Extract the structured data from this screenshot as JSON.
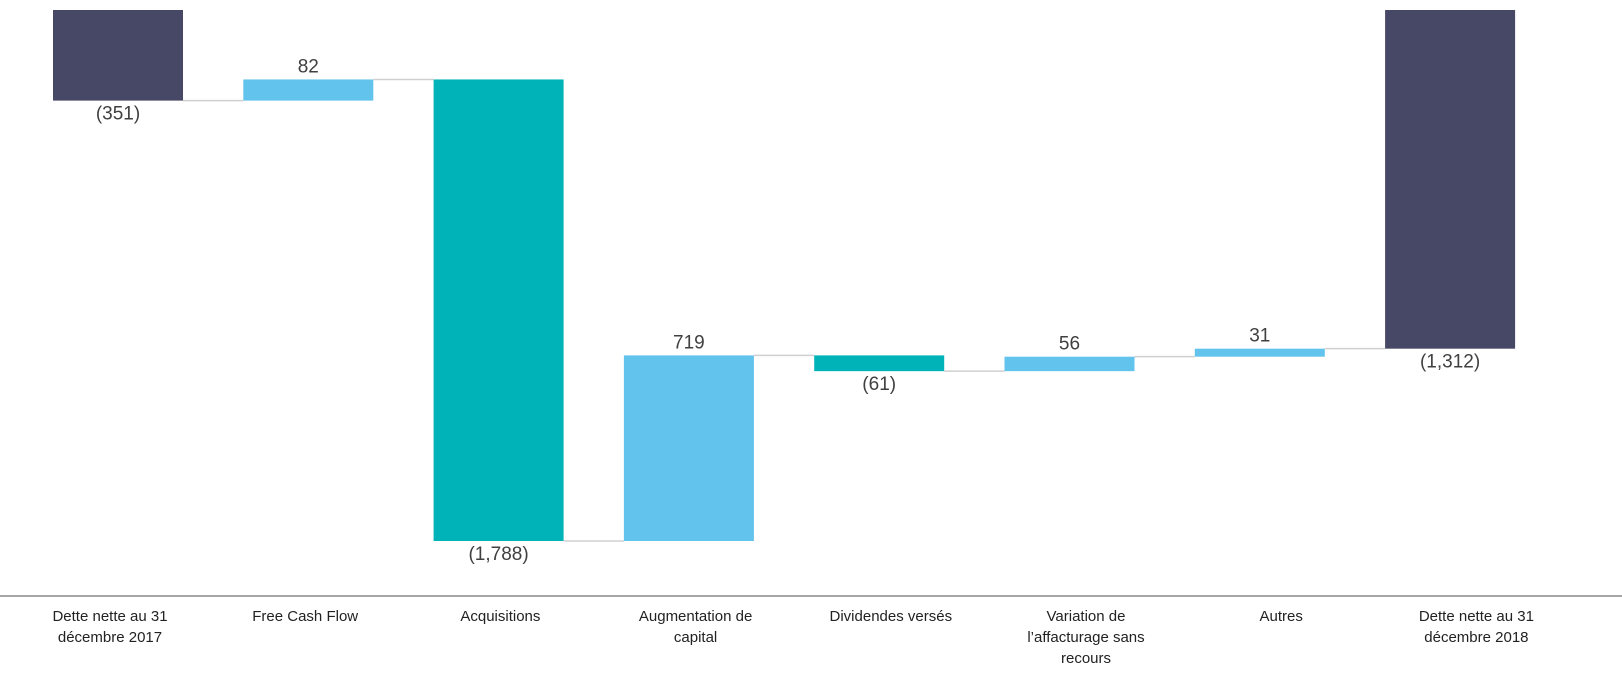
{
  "chart_data": {
    "type": "waterfall",
    "categories": [
      "Dette nette au 31 décembre 2017",
      "Free Cash Flow",
      "Acquisitions",
      "Augmentation de capital",
      "Dividendes versés",
      "Variation de l’affacturage sans recours",
      "Autres",
      "Dette nette au 31 décembre 2018"
    ],
    "values": [
      -351,
      82,
      -1788,
      719,
      -61,
      56,
      31,
      -1312
    ],
    "value_labels": [
      "(351)",
      "82",
      "(1,788)",
      "719",
      "(61)",
      "56",
      "31",
      "(1,312)"
    ],
    "measure": [
      "total",
      "relative",
      "relative",
      "relative",
      "relative",
      "relative",
      "relative",
      "total"
    ],
    "total_color": "#464866",
    "increase_color": "#62c3ec",
    "decrease_color": "#00b3b8"
  }
}
